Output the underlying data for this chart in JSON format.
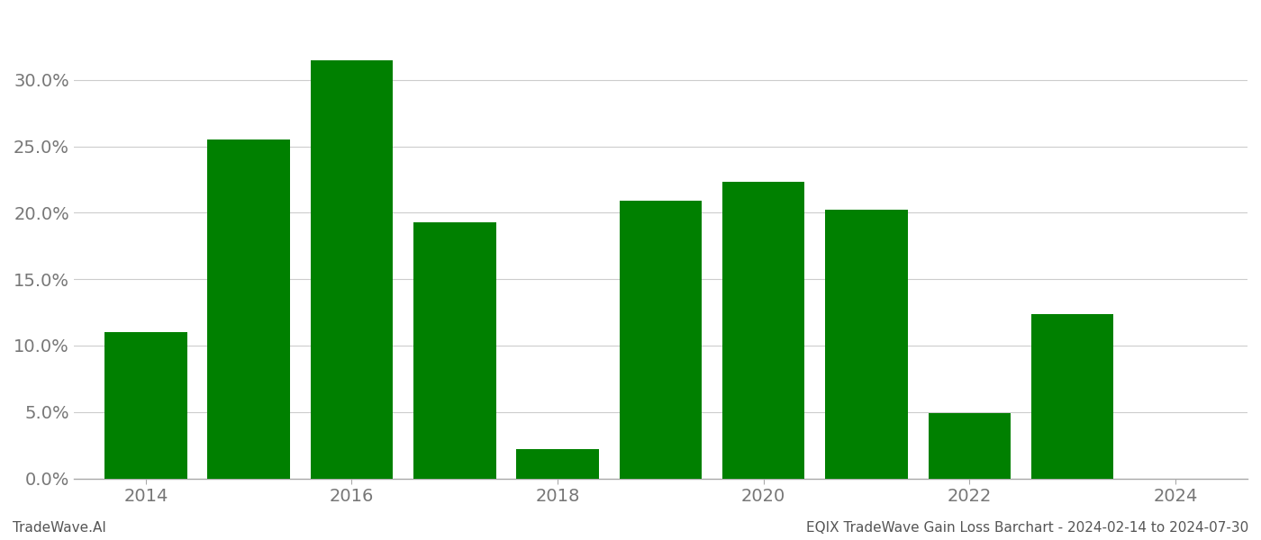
{
  "years": [
    2014,
    2015,
    2016,
    2017,
    2018,
    2019,
    2020,
    2021,
    2022,
    2023,
    2024
  ],
  "values": [
    0.11,
    0.255,
    0.315,
    0.193,
    0.022,
    0.209,
    0.223,
    0.202,
    0.049,
    0.124,
    null
  ],
  "bar_color": "#008000",
  "background_color": "#ffffff",
  "grid_color": "#cccccc",
  "ylim": [
    0,
    0.35
  ],
  "yticks": [
    0.0,
    0.05,
    0.1,
    0.15,
    0.2,
    0.25,
    0.3
  ],
  "xtick_positions": [
    2014.5,
    2016.5,
    2018.5,
    2020.5,
    2022.5,
    2024.5
  ],
  "xtick_labels": [
    "2014",
    "2016",
    "2018",
    "2020",
    "2022",
    "2024"
  ],
  "footer_left": "TradeWave.AI",
  "footer_right": "EQIX TradeWave Gain Loss Barchart - 2024-02-14 to 2024-07-30",
  "tick_fontsize": 14,
  "footer_fontsize": 11,
  "bar_width": 0.8
}
